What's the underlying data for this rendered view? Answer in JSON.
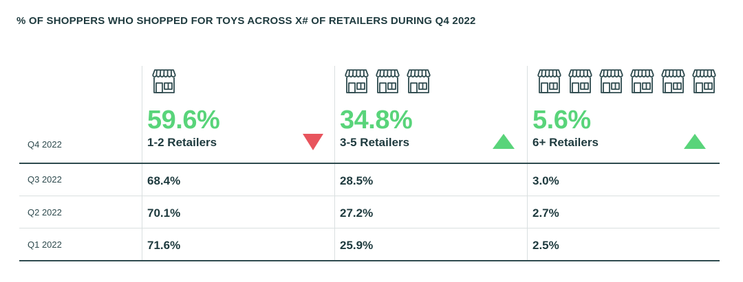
{
  "chart_data": {
    "type": "table",
    "title": "% OF SHOPPERS WHO SHOPPED FOR TOYS ACROSS X# OF RETAILERS DURING Q4 2022",
    "columns": [
      {
        "label": "1-2 Retailers",
        "headline": "59.6%",
        "trend": "down",
        "icon_count": 1,
        "trend_color": "#e8545d"
      },
      {
        "label": "3-5 Retailers",
        "headline": "34.8%",
        "trend": "up",
        "icon_count": 3,
        "trend_color": "#59d47a"
      },
      {
        "label": "6+ Retailers",
        "headline": "5.6%",
        "trend": "up",
        "icon_count": 6,
        "trend_color": "#59d47a"
      }
    ],
    "headline_row": "Q4 2022",
    "rows": [
      {
        "quarter": "Q3 2022",
        "values": [
          "68.4%",
          "28.5%",
          "3.0%"
        ]
      },
      {
        "quarter": "Q2 2022",
        "values": [
          "70.1%",
          "27.2%",
          "2.7%"
        ]
      },
      {
        "quarter": "Q1 2022",
        "values": [
          "71.6%",
          "25.9%",
          "2.5%"
        ]
      }
    ],
    "colors": {
      "accent": "#59d47a",
      "down": "#e8545d",
      "text": "#1e3a3e"
    }
  },
  "icon": "store-icon"
}
